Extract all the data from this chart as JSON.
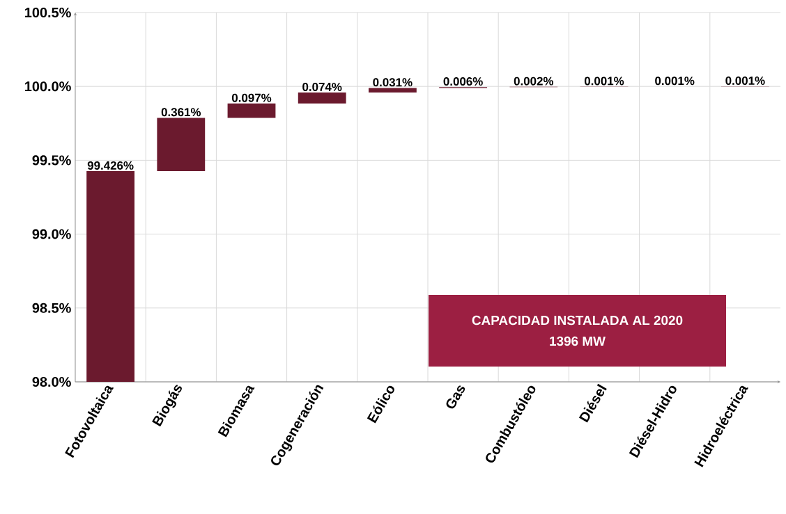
{
  "chart_data": {
    "type": "bar",
    "categories": [
      "Fotovoltaica",
      "Biogás",
      "Biomasa",
      "Cogeneración",
      "Eólico",
      "Gas",
      "Combustóleo",
      "Diésel",
      "Diésel-Hidro",
      "Hidroeléctrica"
    ],
    "values": [
      99.426,
      0.361,
      0.097,
      0.074,
      0.031,
      0.006,
      0.002,
      0.001,
      0.001,
      0.001
    ],
    "base": [
      null,
      99.426,
      99.787,
      99.884,
      99.958,
      99.989,
      99.995,
      99.997,
      99.998,
      99.999
    ],
    "value_labels": [
      "99.426%",
      "0.361%",
      "0.097%",
      "0.074%",
      "0.031%",
      "0.006%",
      "0.002%",
      "0.001%",
      "0.001%",
      "0.001%"
    ],
    "color": "#6b1a2e",
    "ylim": [
      98.0,
      100.5
    ],
    "yticks": [
      {
        "value": 98.0,
        "label": "98.0%"
      },
      {
        "value": 98.5,
        "label": "98.5%"
      },
      {
        "value": 99.0,
        "label": "99.0%"
      },
      {
        "value": 99.5,
        "label": "99.5%"
      },
      {
        "value": 100.0,
        "label": "100.0%"
      },
      {
        "value": 100.5,
        "label": "100.5%"
      }
    ],
    "grid": true,
    "annotations": [
      "CAPACIDAD INSTALADA AL 2020",
      "1396 MW"
    ]
  }
}
